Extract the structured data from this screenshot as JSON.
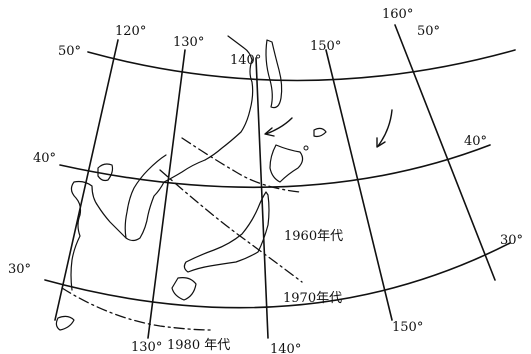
{
  "map": {
    "latitude_labels": [
      "50°",
      "50°",
      "40°",
      "40°",
      "30°",
      "30°"
    ],
    "longitude_labels": [
      "120°",
      "130°",
      "140°",
      "150°",
      "160°",
      "130°",
      "140°",
      "150°"
    ],
    "era_labels": {
      "e1960": "1960年代",
      "e1970": "1970年代",
      "e1980": "1980 年代"
    },
    "colors": {
      "ink": "#111111",
      "background": "#ffffff"
    }
  }
}
